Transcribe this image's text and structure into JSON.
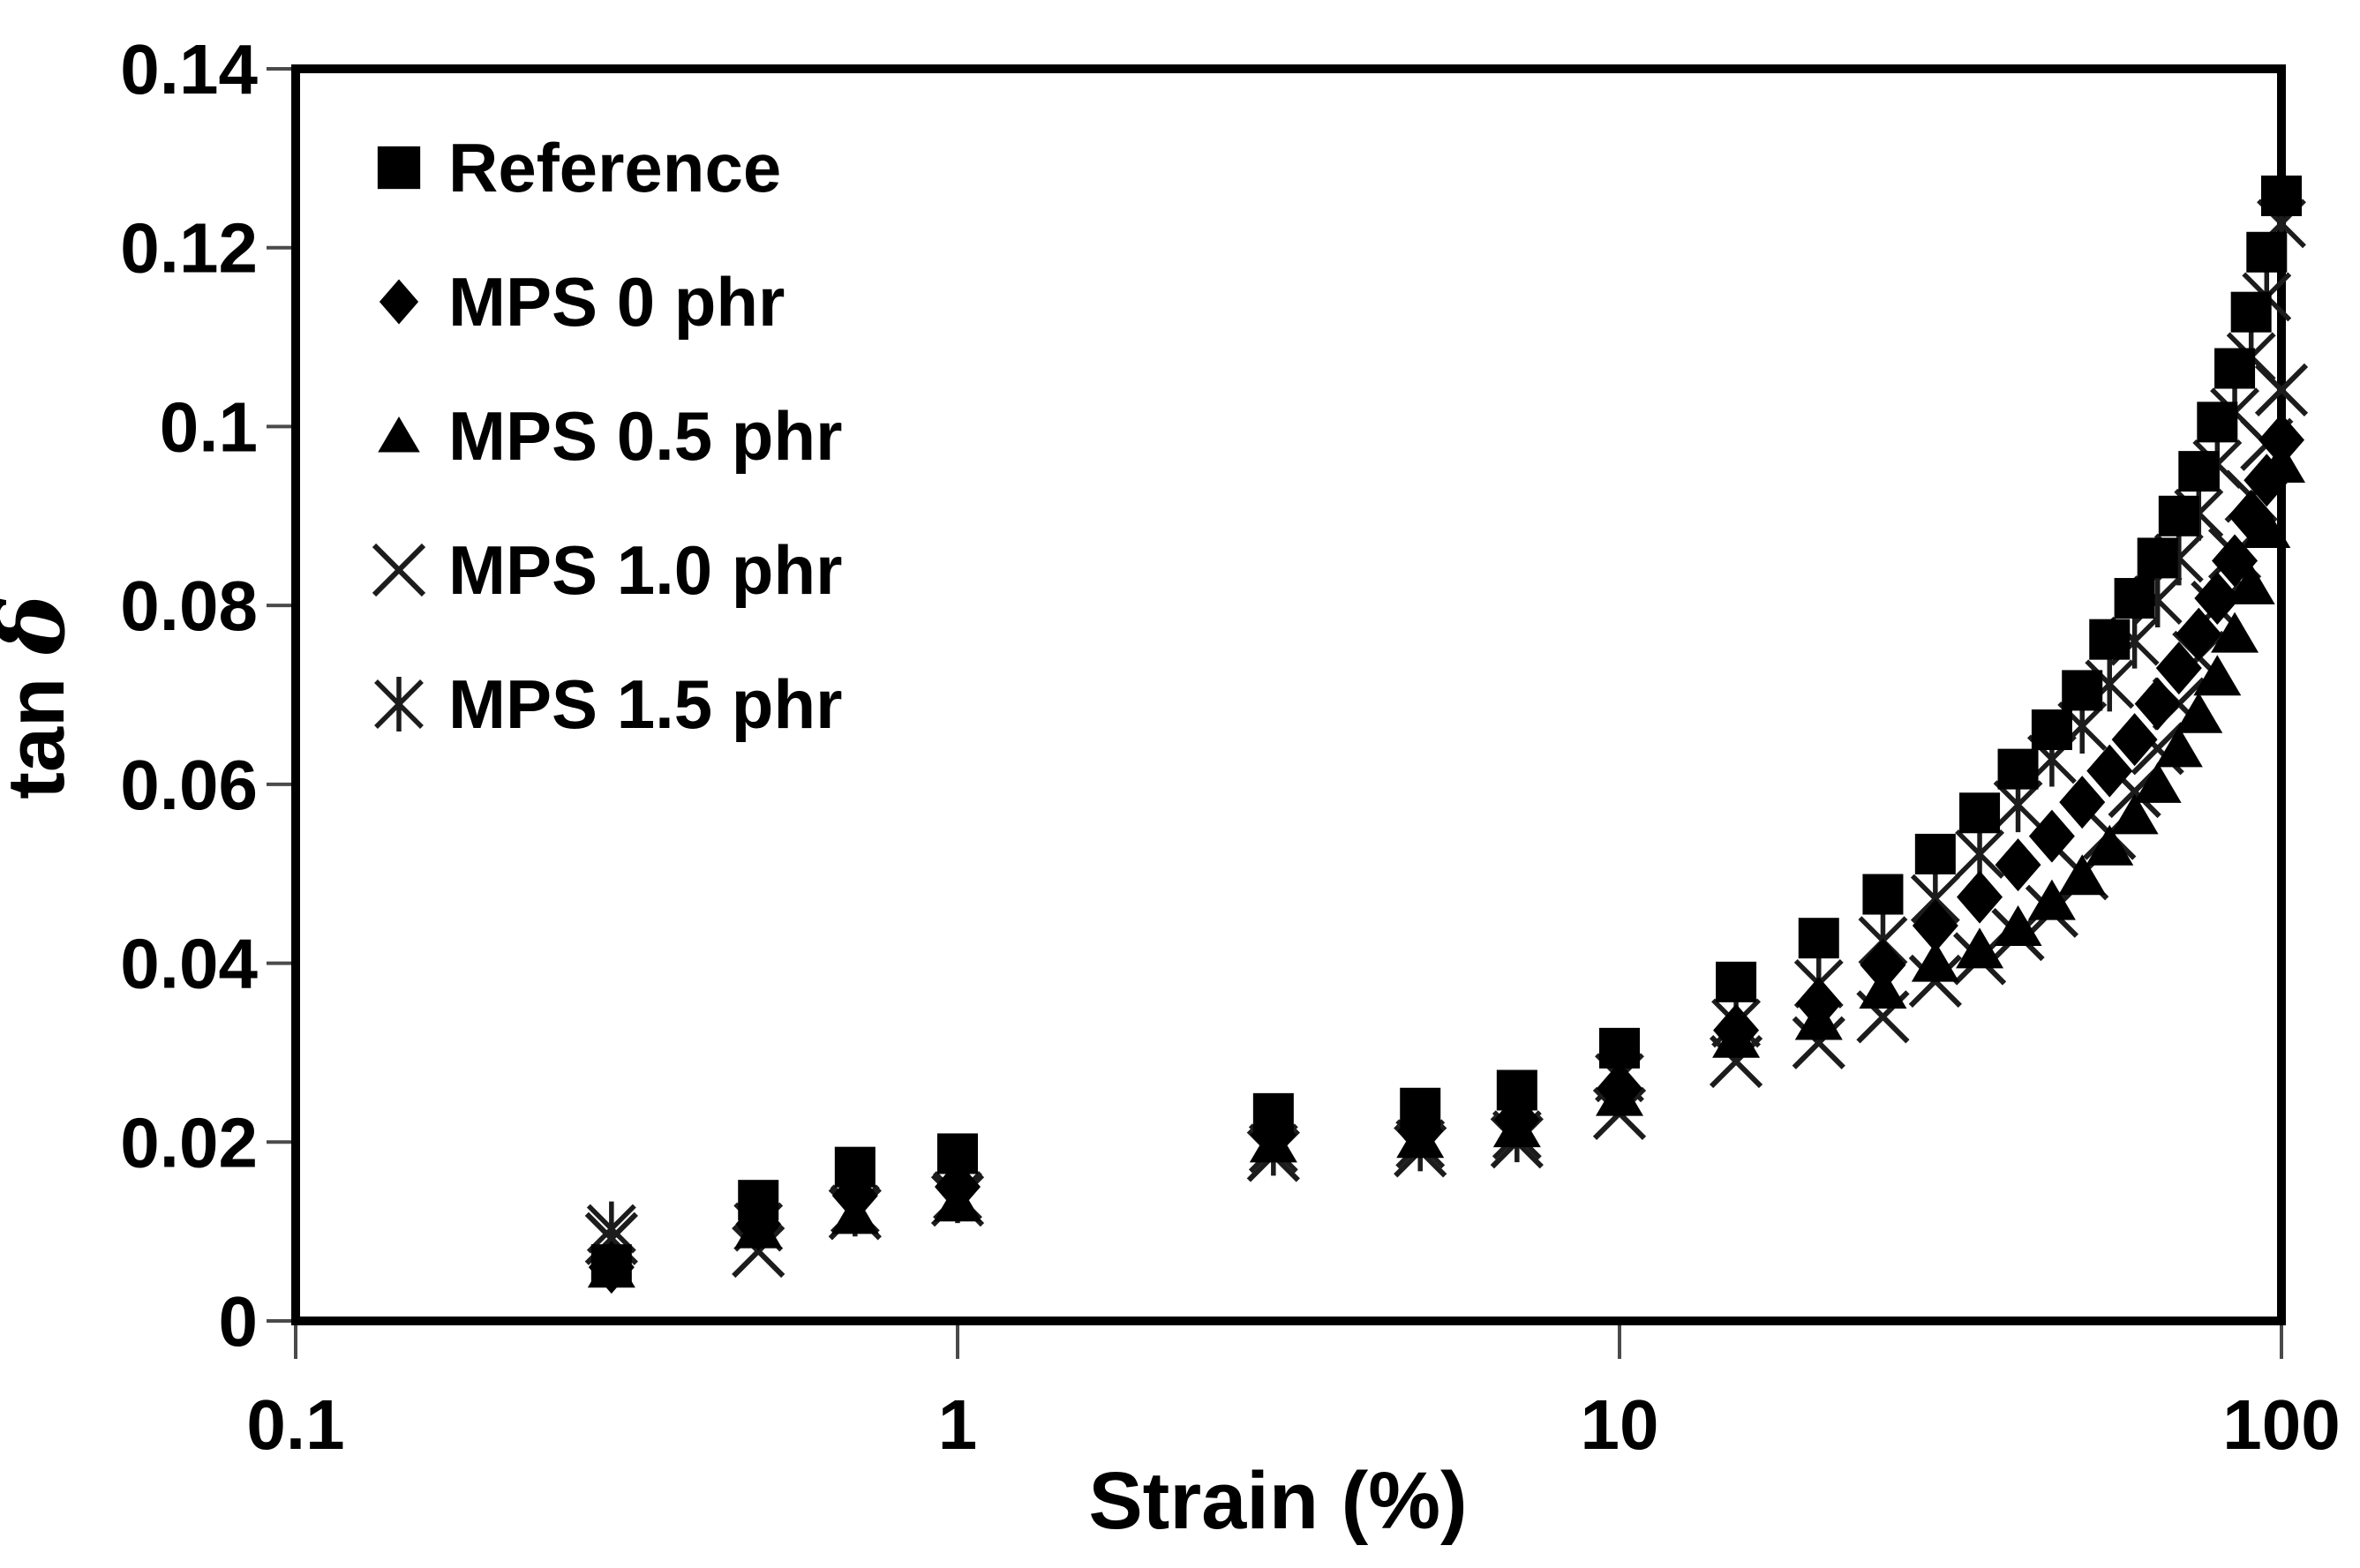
{
  "figure": {
    "background_color": "#ffffff",
    "foreground_color": "#000000"
  },
  "chart_data": {
    "type": "scatter",
    "title": "",
    "x_axis": {
      "label": "Strain (%)",
      "scale": "log",
      "min": 0.1,
      "max": 100,
      "ticks": [
        0.1,
        1,
        10,
        100
      ],
      "tick_labels": [
        "0.1",
        "1",
        "10",
        "100"
      ]
    },
    "y_axis": {
      "label": "tan δ",
      "scale": "linear",
      "min": 0,
      "max": 0.14,
      "ticks": [
        0,
        0.02,
        0.04,
        0.06,
        0.08,
        0.1,
        0.12,
        0.14
      ],
      "tick_labels": [
        "0",
        "0.02",
        "0.04",
        "0.06",
        "0.08",
        "0.1",
        "0.12",
        "0.14"
      ]
    },
    "grid": false,
    "legend_position": "top-left-inside",
    "marker_color": "#000000",
    "x": [
      0.3,
      0.5,
      0.7,
      1,
      3,
      5,
      7,
      10,
      15,
      20,
      25,
      30,
      35,
      40,
      45,
      50,
      55,
      60,
      65,
      70,
      75,
      80,
      85,
      90,
      95,
      100
    ],
    "series": [
      {
        "name": "Reference",
        "marker": "filled-square",
        "values": [
          0.0063,
          0.0135,
          0.0172,
          0.0187,
          0.0232,
          0.0238,
          0.0258,
          0.0305,
          0.0379,
          0.0428,
          0.0477,
          0.0522,
          0.0568,
          0.0617,
          0.0661,
          0.0705,
          0.0762,
          0.0808,
          0.0853,
          0.09,
          0.095,
          0.1005,
          0.1065,
          0.1128,
          0.1195,
          0.1258
        ]
      },
      {
        "name": "MPS 0 phr",
        "marker": "filled-diamond",
        "values": [
          0.006,
          0.0108,
          0.014,
          0.015,
          0.0208,
          0.0212,
          0.0225,
          0.026,
          0.0325,
          0.0355,
          0.0398,
          0.0442,
          0.0474,
          0.051,
          0.0542,
          0.058,
          0.0615,
          0.065,
          0.069,
          0.073,
          0.0768,
          0.0808,
          0.085,
          0.09,
          0.094,
          0.0985
        ]
      },
      {
        "name": "MPS 0.5 phr",
        "marker": "filled-triangle",
        "values": [
          0.0058,
          0.0102,
          0.0118,
          0.0132,
          0.0198,
          0.0203,
          0.0215,
          0.025,
          0.0315,
          0.0335,
          0.037,
          0.04,
          0.0415,
          0.044,
          0.0469,
          0.0497,
          0.053,
          0.0565,
          0.06,
          0.064,
          0.0678,
          0.072,
          0.0768,
          0.0822,
          0.0885,
          0.0958
        ]
      },
      {
        "name": "MPS 1.0 phr",
        "marker": "cross",
        "values": [
          0.0092,
          0.0078,
          0.012,
          0.0135,
          0.0185,
          0.019,
          0.02,
          0.0232,
          0.029,
          0.0311,
          0.034,
          0.038,
          0.0405,
          0.0432,
          0.0458,
          0.05,
          0.0545,
          0.0592,
          0.064,
          0.069,
          0.0742,
          0.0798,
          0.0858,
          0.0922,
          0.098,
          0.1041
        ]
      },
      {
        "name": "MPS 1.5 phr",
        "marker": "asterisk",
        "values": [
          0.0103,
          0.0105,
          0.0125,
          0.014,
          0.0193,
          0.0198,
          0.0208,
          0.0272,
          0.0333,
          0.0377,
          0.0425,
          0.0472,
          0.0522,
          0.0577,
          0.0628,
          0.0665,
          0.0712,
          0.076,
          0.0806,
          0.0853,
          0.0903,
          0.0958,
          0.1016,
          0.1078,
          0.1145,
          0.1227
        ]
      }
    ]
  }
}
